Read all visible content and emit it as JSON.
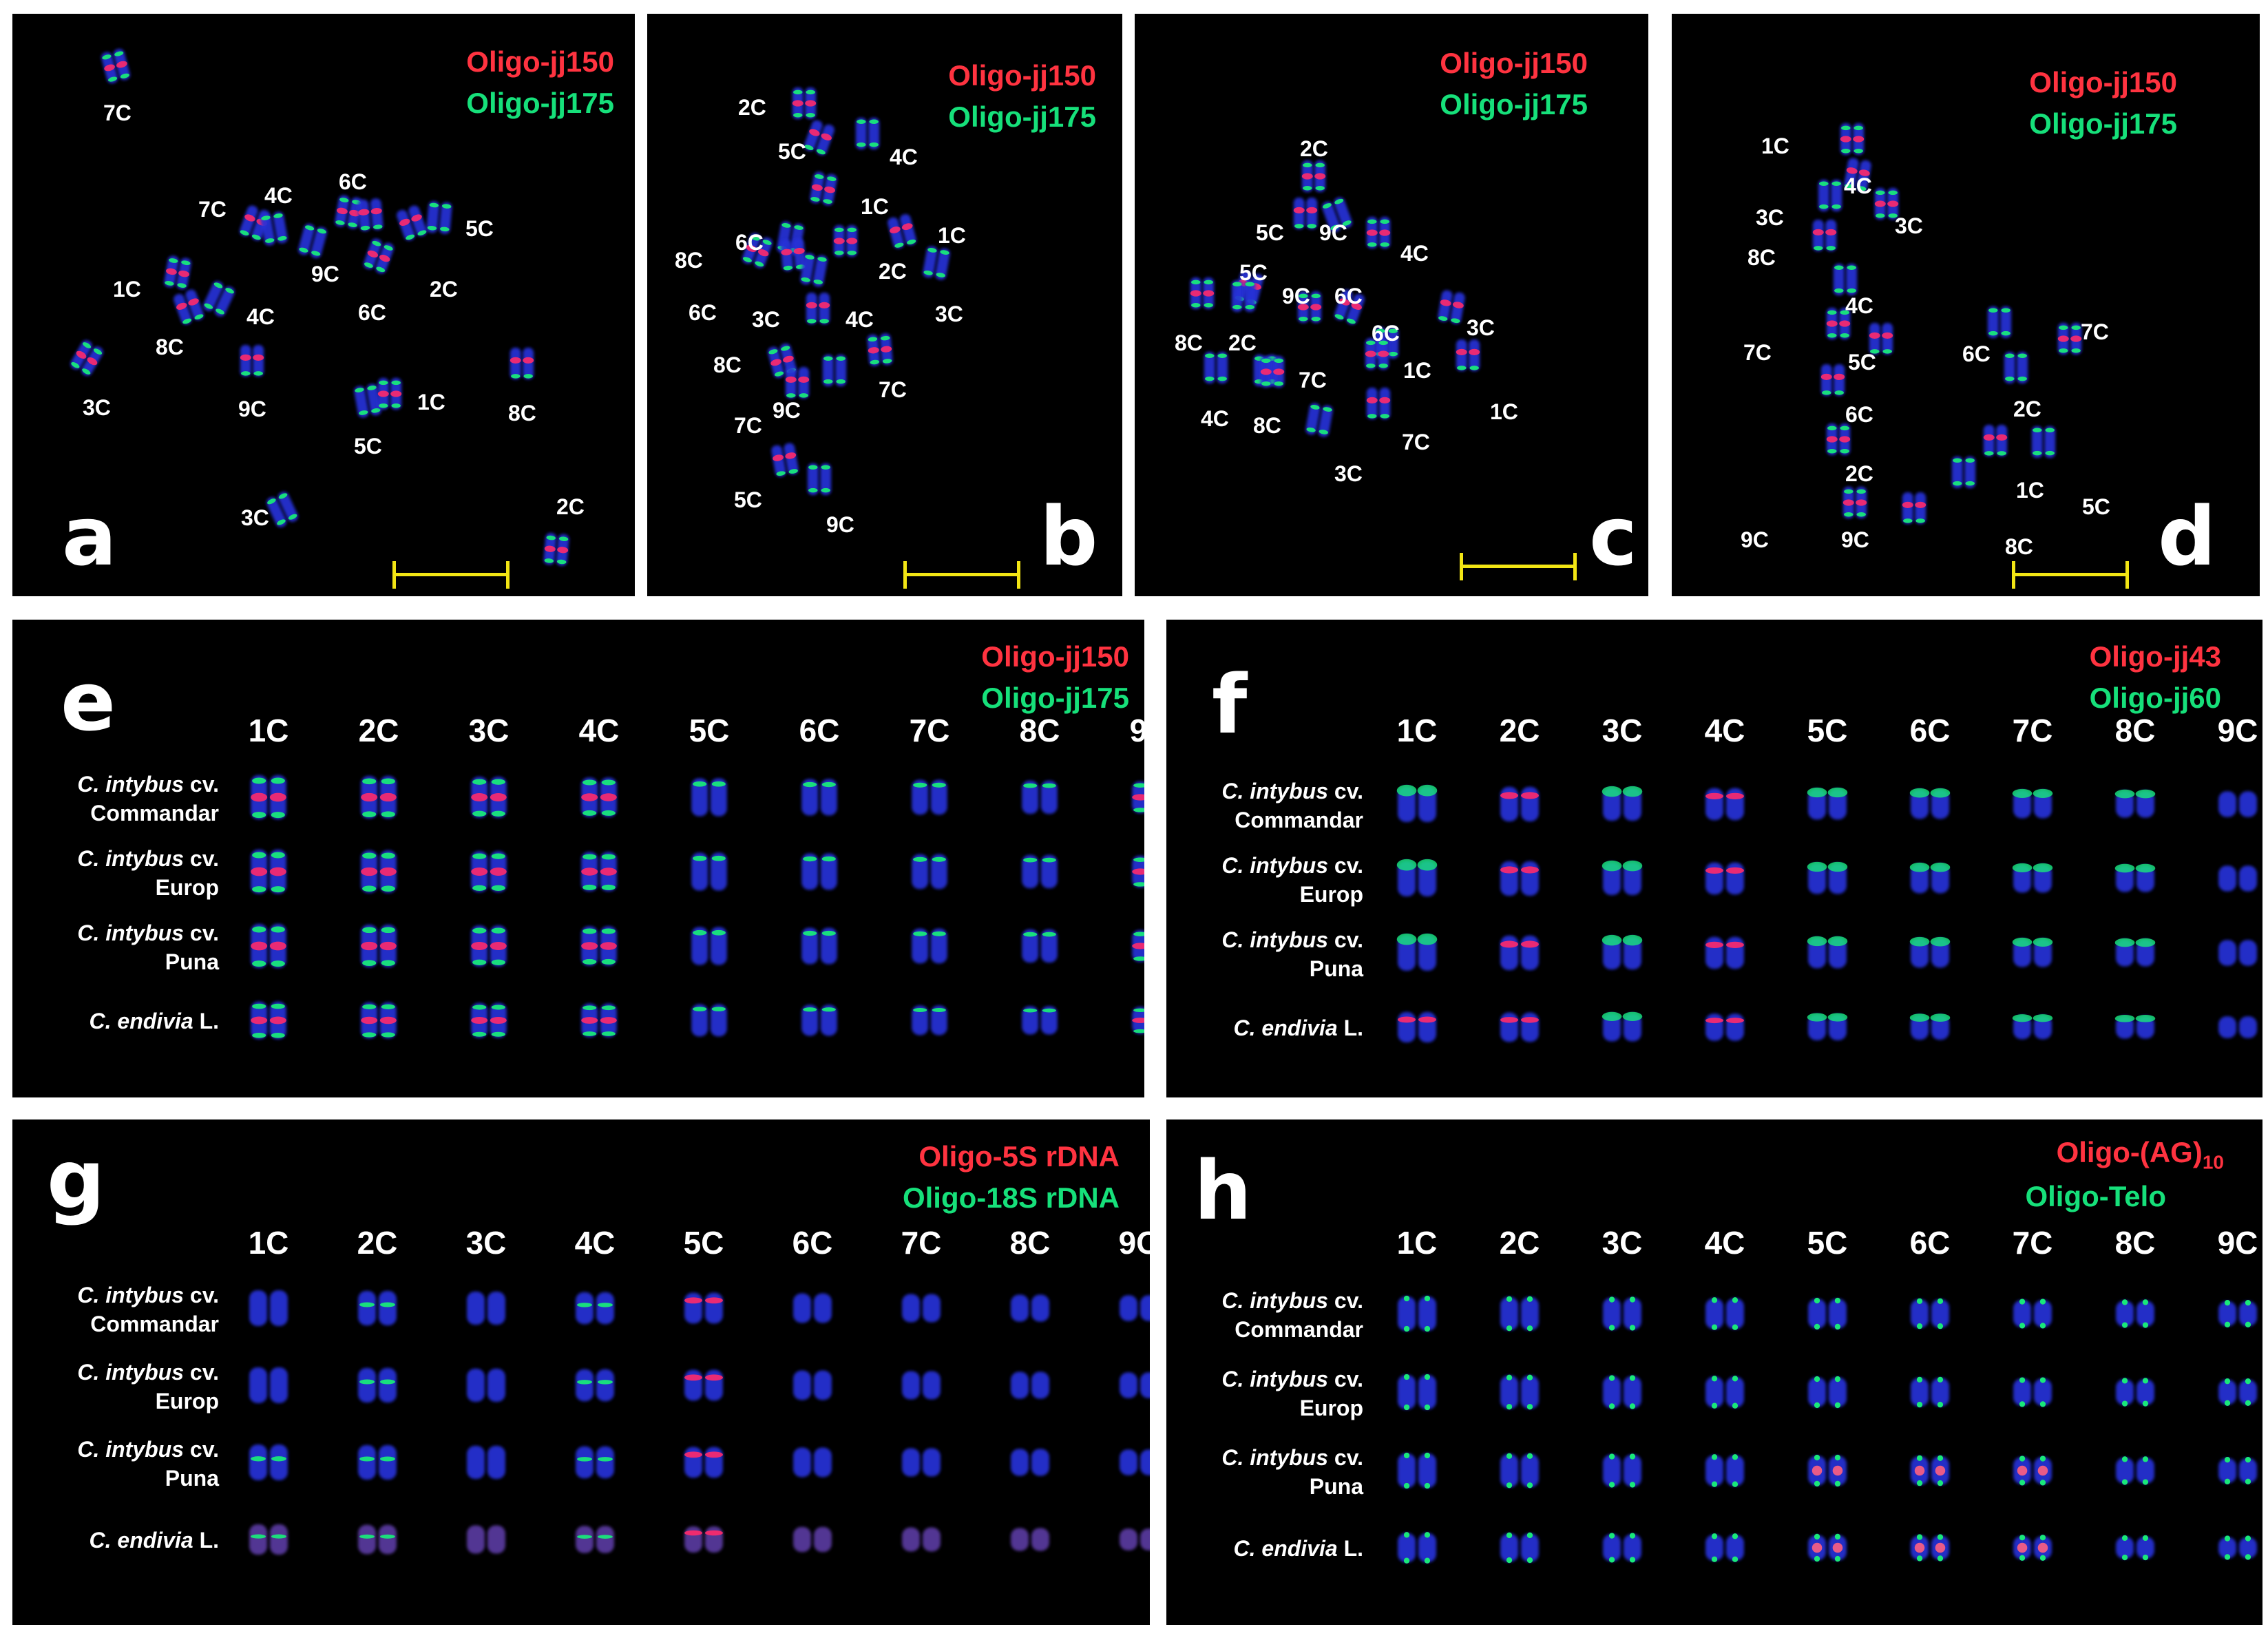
{
  "panels": {
    "a": {
      "letter": "a",
      "probe_red": "Oligo-jj150",
      "probe_green": "Oligo-jj175",
      "labels": [
        "7C",
        "7C",
        "4C",
        "6C",
        "5C",
        "9C",
        "6C",
        "2C",
        "1C",
        "8C",
        "4C",
        "3C",
        "9C",
        "1C",
        "5C",
        "8C",
        "3C",
        "2C"
      ]
    },
    "b": {
      "letter": "b",
      "probe_red": "Oligo-jj150",
      "probe_green": "Oligo-jj175",
      "labels": [
        "2C",
        "5C",
        "4C",
        "1C",
        "1C",
        "6C",
        "8C",
        "2C",
        "6C",
        "3C",
        "4C",
        "3C",
        "8C",
        "9C",
        "7C",
        "7C",
        "5C",
        "9C"
      ]
    },
    "c": {
      "letter": "c",
      "probe_red": "Oligo-jj150",
      "probe_green": "Oligo-jj175",
      "labels": [
        "2C",
        "5C",
        "9C",
        "4C",
        "5C",
        "9C",
        "6C",
        "6C",
        "3C",
        "8C",
        "2C",
        "7C",
        "1C",
        "1C",
        "4C",
        "8C",
        "7C",
        "3C"
      ]
    },
    "d": {
      "letter": "d",
      "probe_red": "Oligo-jj150",
      "probe_green": "Oligo-jj175",
      "labels": [
        "1C",
        "4C",
        "3C",
        "3C",
        "8C",
        "4C",
        "7C",
        "5C",
        "6C",
        "7C",
        "6C",
        "2C",
        "2C",
        "1C",
        "5C",
        "9C",
        "9C",
        "8C"
      ]
    },
    "e": {
      "letter": "e",
      "probe_red": "Oligo-jj150",
      "probe_green": "Oligo-jj175"
    },
    "f": {
      "letter": "f",
      "probe_red": "Oligo-jj43",
      "probe_green": "Oligo-jj60"
    },
    "g": {
      "letter": "g",
      "probe_red": "Oligo-5S rDNA",
      "probe_green": "Oligo-18S rDNA"
    },
    "h": {
      "letter": "h",
      "probe_red": "Oligo-(AG)",
      "probe_red_sub": "10",
      "probe_green": "Oligo-Telo"
    }
  },
  "columns": [
    "1C",
    "2C",
    "3C",
    "4C",
    "5C",
    "6C",
    "7C",
    "8C",
    "9C"
  ],
  "rows": [
    {
      "species": "C. intybus",
      "suffix": " cv.",
      "cultivar": "Commandar"
    },
    {
      "species": "C. intybus",
      "suffix": " cv.",
      "cultivar": "Europ"
    },
    {
      "species": "C. intybus",
      "suffix": " cv.",
      "cultivar": "Puna"
    },
    {
      "species": "C. endivia",
      "suffix": " L.",
      "cultivar": ""
    }
  ],
  "colors": {
    "chromosome": "#2830d8",
    "red_signal": "#ff2a6a",
    "green_signal": "#19e87a",
    "scale_bar": "#f2e514"
  }
}
